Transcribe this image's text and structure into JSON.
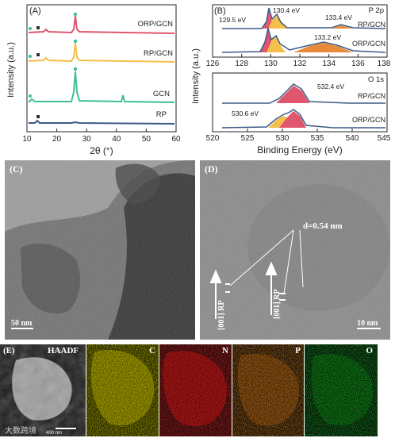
{
  "panelA": {
    "tag": "(A)",
    "xlabel": "2θ (°)",
    "ylabel": "Intensity (a.u.)",
    "xticks": [
      "10",
      "20",
      "30",
      "40",
      "50",
      "60"
    ],
    "traces": [
      {
        "label": "ORP/GCN",
        "color": "#e0566f"
      },
      {
        "label": "RP/GCN",
        "color": "#f5c04a"
      },
      {
        "label": "GCN",
        "color": "#3fbf93"
      },
      {
        "label": "RP",
        "color": "#3d5a86"
      }
    ]
  },
  "panelB": {
    "tag": "(B)",
    "ylabel": "Intensity (a.u.)",
    "xlabel": "Binding Energy (eV)",
    "p2p": {
      "title": "P 2p",
      "xticks": [
        "126",
        "128",
        "130",
        "132",
        "134",
        "136",
        "138"
      ],
      "peaks": [
        "129.5 eV",
        "130.4 eV",
        "133.4 eV",
        "133.2 eV"
      ],
      "samples": [
        "RP/GCN",
        "ORP/GCN"
      ]
    },
    "o1s": {
      "title": "O 1s",
      "xticks": [
        "520",
        "525",
        "530",
        "535",
        "540",
        "545"
      ],
      "peaks": [
        "532.4 eV",
        "530.6 eV"
      ],
      "samples": [
        "RP/GCN",
        "ORP/GCN"
      ]
    }
  },
  "panelC": {
    "tag": "(C)",
    "scale": "50 nm"
  },
  "panelD": {
    "tag": "(D)",
    "spacing": "d=0.54 nm",
    "direction": "[001] RP",
    "scale": "10 nm"
  },
  "panelE": {
    "tag": "(E)",
    "maps": [
      "HAADF",
      "C",
      "N",
      "P",
      "O"
    ],
    "scale": "400 nm",
    "watermark": "大数跨境"
  }
}
